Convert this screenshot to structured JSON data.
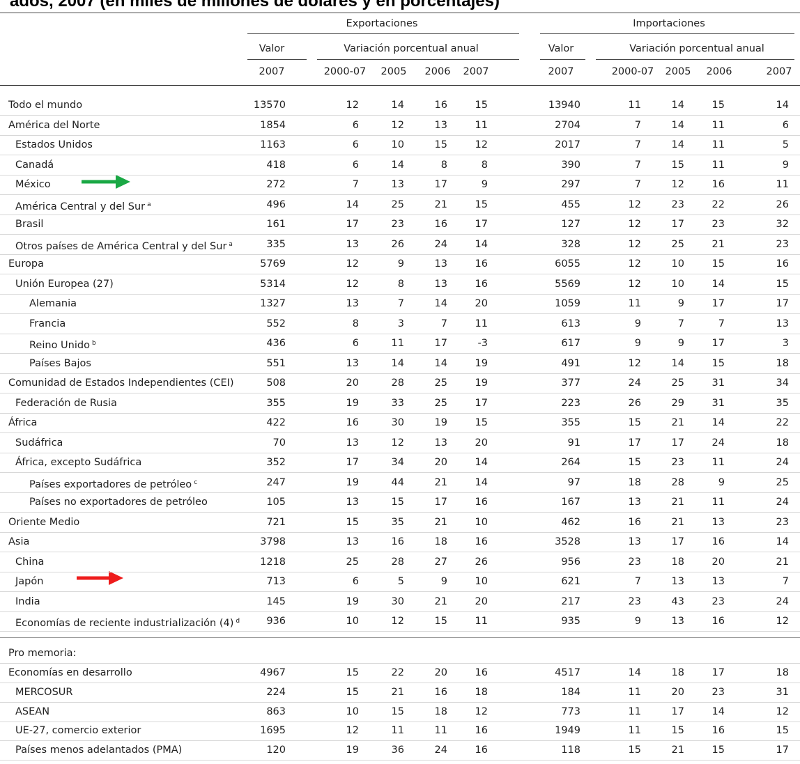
{
  "title": "ados, 2007 (en miles de millones de dólares y en porcentajes)",
  "header": {
    "groups": [
      {
        "title": "Exportaciones",
        "valor": "Valor",
        "variacion": "Variación porcentual anual",
        "years": [
          "2007",
          "2000-07",
          "2005",
          "2006",
          "2007"
        ]
      },
      {
        "title": "Importaciones",
        "valor": "Valor",
        "variacion": "Variación porcentual anual",
        "years": [
          "2007",
          "2000-07",
          "2005",
          "2006",
          "2007"
        ]
      }
    ]
  },
  "table": {
    "rows": [
      {
        "label": "Todo el mundo",
        "values": [
          13570,
          12,
          14,
          16,
          15,
          13940,
          11,
          14,
          15,
          14
        ]
      },
      {
        "label": "América del Norte",
        "values": [
          1854,
          6,
          12,
          13,
          11,
          2704,
          7,
          14,
          11,
          6
        ]
      },
      {
        "label": "Estados Unidos",
        "values": [
          1163,
          6,
          10,
          15,
          12,
          2017,
          7,
          14,
          11,
          5
        ]
      },
      {
        "label": "Canadá",
        "values": [
          418,
          6,
          14,
          8,
          8,
          390,
          7,
          15,
          11,
          9
        ]
      },
      {
        "label": "México",
        "values": [
          272,
          7,
          13,
          17,
          9,
          297,
          7,
          12,
          16,
          11
        ]
      },
      {
        "label": "América Central y del Sur",
        "note": "a",
        "values": [
          496,
          14,
          25,
          21,
          15,
          455,
          12,
          23,
          22,
          26
        ]
      },
      {
        "label": "Brasil",
        "values": [
          161,
          17,
          23,
          16,
          17,
          127,
          12,
          17,
          23,
          32
        ]
      },
      {
        "label": "Otros países de América Central y del Sur",
        "note": "a",
        "values": [
          335,
          13,
          26,
          24,
          14,
          328,
          12,
          25,
          21,
          23
        ]
      },
      {
        "label": "Europa",
        "values": [
          5769,
          12,
          9,
          13,
          16,
          6055,
          12,
          10,
          15,
          16
        ]
      },
      {
        "label": "Unión Europea  (27)",
        "values": [
          5314,
          12,
          8,
          13,
          16,
          5569,
          12,
          10,
          14,
          15
        ]
      },
      {
        "label": "Alemania",
        "values": [
          1327,
          13,
          7,
          14,
          20,
          1059,
          11,
          9,
          17,
          17
        ]
      },
      {
        "label": "Francia",
        "values": [
          552,
          8,
          3,
          7,
          11,
          613,
          9,
          7,
          7,
          13
        ]
      },
      {
        "label": "Reino Unido",
        "note": "b",
        "values": [
          436,
          6,
          11,
          17,
          -3,
          617,
          9,
          9,
          17,
          3
        ]
      },
      {
        "label": "Países Bajos",
        "values": [
          551,
          13,
          14,
          14,
          19,
          491,
          12,
          14,
          15,
          18
        ]
      },
      {
        "label": "Comunidad de Estados Independientes (CEI)",
        "values": [
          508,
          20,
          28,
          25,
          19,
          377,
          24,
          25,
          31,
          34
        ]
      },
      {
        "label": "Federación de Rusia",
        "values": [
          355,
          19,
          33,
          25,
          17,
          223,
          26,
          29,
          31,
          35
        ]
      },
      {
        "label": "África",
        "values": [
          422,
          16,
          30,
          19,
          15,
          355,
          15,
          21,
          14,
          22
        ]
      },
      {
        "label": "Sudáfrica",
        "values": [
          70,
          13,
          12,
          13,
          20,
          91,
          17,
          17,
          24,
          18
        ]
      },
      {
        "label": "África, excepto Sudáfrica",
        "values": [
          352,
          17,
          34,
          20,
          14,
          264,
          15,
          23,
          11,
          24
        ]
      },
      {
        "label": "Países exportadores de petróleo",
        "note": "c",
        "values": [
          247,
          19,
          44,
          21,
          14,
          97,
          18,
          28,
          9,
          25
        ]
      },
      {
        "label": "Países no exportadores de petróleo",
        "values": [
          105,
          13,
          15,
          17,
          16,
          167,
          13,
          21,
          11,
          24
        ]
      },
      {
        "label": "Oriente Medio",
        "values": [
          721,
          15,
          35,
          21,
          10,
          462,
          16,
          21,
          13,
          23
        ]
      },
      {
        "label": "Asia",
        "values": [
          3798,
          13,
          16,
          18,
          16,
          3528,
          13,
          17,
          16,
          14
        ]
      },
      {
        "label": "China",
        "values": [
          1218,
          25,
          28,
          27,
          26,
          956,
          23,
          18,
          20,
          21
        ]
      },
      {
        "label": "Japón",
        "values": [
          713,
          6,
          5,
          9,
          10,
          621,
          7,
          13,
          13,
          7
        ]
      },
      {
        "label": "India",
        "values": [
          145,
          19,
          30,
          21,
          20,
          217,
          23,
          43,
          23,
          24
        ]
      },
      {
        "label": "Economías de reciente industrialización (4)",
        "note": "d",
        "values": [
          936,
          10,
          12,
          15,
          11,
          935,
          9,
          13,
          16,
          12
        ]
      }
    ]
  },
  "memo": {
    "title": "Pro memoria:",
    "rows": [
      {
        "label": "Economías en desarrollo",
        "values": [
          4967,
          15,
          22,
          20,
          16,
          4517,
          14,
          18,
          17,
          18
        ]
      },
      {
        "label": "MERCOSUR",
        "values": [
          224,
          15,
          21,
          16,
          18,
          184,
          11,
          20,
          23,
          31
        ]
      },
      {
        "label": "ASEAN",
        "values": [
          863,
          10,
          15,
          18,
          12,
          773,
          11,
          17,
          14,
          12
        ]
      },
      {
        "label": "UE-27, comercio exterior",
        "values": [
          1695,
          12,
          11,
          11,
          16,
          1949,
          11,
          15,
          16,
          15
        ]
      },
      {
        "label": "Países menos adelantados (PMA)",
        "values": [
          120,
          19,
          36,
          24,
          16,
          118,
          15,
          21,
          15,
          17
        ]
      }
    ]
  }
}
